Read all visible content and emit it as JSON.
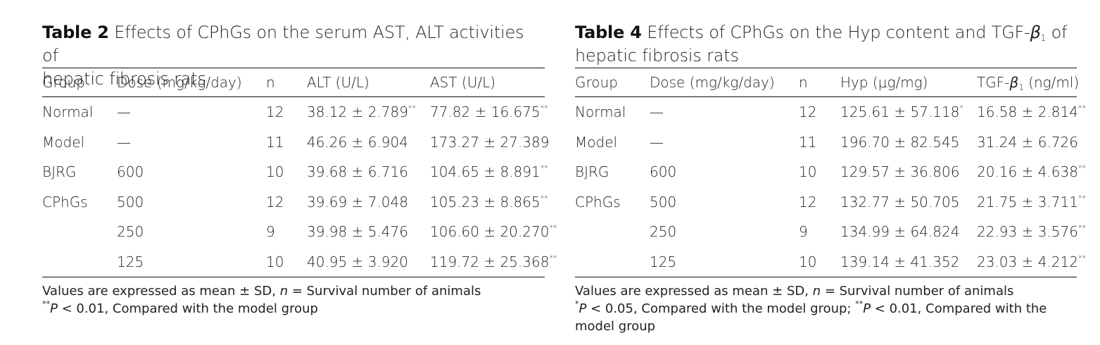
{
  "tables": [
    {
      "number": "Table 2",
      "title_line1": " Effects of CPhGs on the serum AST, ALT activities of",
      "title_line2": "hepatic fibrosis rats",
      "headers": [
        "Group",
        "Dose (mg/kg/day)",
        "n",
        "ALT (U/L)",
        "AST (U/L)"
      ],
      "rows": [
        {
          "group": "Normal",
          "dose": "—",
          "n": "12",
          "v1": "38.12 ± 2.789",
          "v1_mark": "**",
          "v2": "77.82 ± 16.675",
          "v2_mark": "**"
        },
        {
          "group": "Model",
          "dose": "—",
          "n": "11",
          "v1": "46.26 ± 6.904",
          "v1_mark": "",
          "v2": "173.27 ± 27.389",
          "v2_mark": ""
        },
        {
          "group": "BJRG",
          "dose": "600",
          "n": "10",
          "v1": "39.68 ± 6.716",
          "v1_mark": "",
          "v2": "104.65 ± 8.891",
          "v2_mark": "**"
        },
        {
          "group": "CPhGs",
          "dose": "500",
          "n": "12",
          "v1": "39.69 ± 7.048",
          "v1_mark": "",
          "v2": "105.23 ± 8.865",
          "v2_mark": "**"
        },
        {
          "group": "",
          "dose": "250",
          "n": "9",
          "v1": "39.98 ± 5.476",
          "v1_mark": "",
          "v2": "106.60 ± 20.270",
          "v2_mark": "**"
        },
        {
          "group": "",
          "dose": "125",
          "n": "10",
          "v1": "40.95 ± 3.920",
          "v1_mark": "",
          "v2": "119.72 ± 25.368",
          "v2_mark": "**"
        }
      ],
      "note1_a": "Values are expressed as mean ± SD, ",
      "note1_n": "n",
      "note1_b": " = Survival number of animals",
      "note2_mark": "**",
      "note2_p": "P",
      "note2_text": " < 0.01, Compared with the model group",
      "note3_mark": "",
      "note3_p": "",
      "note3_text": "",
      "note3_line2": ""
    },
    {
      "number": "Table 4",
      "title_line1": " Effects of CPhGs on the Hyp content and TGF-",
      "title_beta": "β",
      "title_sub": "1",
      "title_line1_end": " of",
      "title_line2": "hepatic fibrosis rats",
      "headers": [
        "Group",
        "Dose (mg/kg/day)",
        "n",
        "Hyp (μg/mg)",
        "TGF-"
      ],
      "header_beta": "β",
      "header_sub": "1",
      "header_unit": " (ng/ml)",
      "rows": [
        {
          "group": "Normal",
          "dose": "—",
          "n": "12",
          "v1": "125.61 ± 57.118",
          "v1_mark": "*",
          "v2": "16.58 ± 2.814",
          "v2_mark": "**"
        },
        {
          "group": "Model",
          "dose": "—",
          "n": "11",
          "v1": "196.70 ± 82.545",
          "v1_mark": "",
          "v2": "31.24 ± 6.726",
          "v2_mark": ""
        },
        {
          "group": "BJRG",
          "dose": "600",
          "n": "10",
          "v1": "129.57 ± 36.806",
          "v1_mark": "",
          "v2": "20.16 ± 4.638",
          "v2_mark": "**"
        },
        {
          "group": "CPhGs",
          "dose": "500",
          "n": "12",
          "v1": "132.77 ± 50.705",
          "v1_mark": "",
          "v2": "21.75 ± 3.711",
          "v2_mark": "**"
        },
        {
          "group": "",
          "dose": "250",
          "n": "9",
          "v1": "134.99 ± 64.824",
          "v1_mark": "",
          "v2": "22.93 ± 3.576",
          "v2_mark": "**"
        },
        {
          "group": "",
          "dose": "125",
          "n": "10",
          "v1": "139.14 ± 41.352",
          "v1_mark": "",
          "v2": "23.03 ± 4.212",
          "v2_mark": "**"
        }
      ],
      "note1_a": "Values are expressed as mean ± SD, ",
      "note1_n": "n",
      "note1_b": " = Survival number of animals",
      "note2_mark": "*",
      "note2_p": "P",
      "note2_text": " < 0.05, Compared with the model group; ",
      "note3_mark": "**",
      "note3_p": "P",
      "note3_text": " < 0.01, Compared with the",
      "note3_line2": "model group"
    }
  ]
}
